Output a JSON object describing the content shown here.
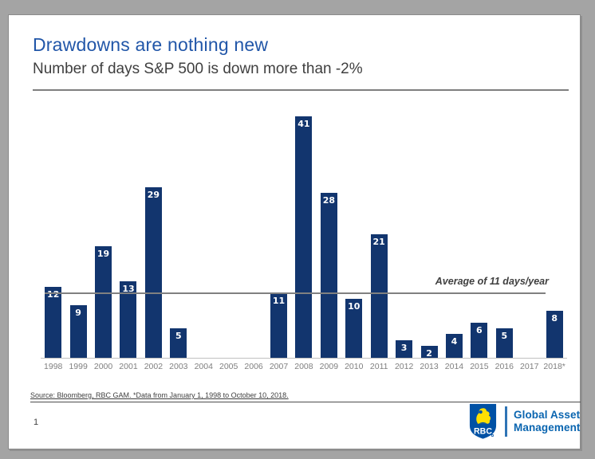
{
  "slide": {
    "title": "Drawdowns are nothing new",
    "subtitle": "Number of days S&P 500 is down more than -2%",
    "source_note": "Source: Bloomberg, RBC GAM. *Data from January 1, 1998 to October 10, 2018.",
    "page_number": "1"
  },
  "chart_data": {
    "type": "bar",
    "title": "Drawdowns are nothing new",
    "subtitle": "Number of days S&P 500 is down more than -2%",
    "categories": [
      "1998",
      "1999",
      "2000",
      "2001",
      "2002",
      "2003",
      "2004",
      "2005",
      "2006",
      "2007",
      "2008",
      "2009",
      "2010",
      "2011",
      "2012",
      "2013",
      "2014",
      "2015",
      "2016",
      "2017",
      "2018*"
    ],
    "values": [
      12,
      9,
      19,
      13,
      29,
      5,
      0,
      0,
      0,
      11,
      41,
      28,
      10,
      21,
      3,
      2,
      4,
      6,
      5,
      0,
      8
    ],
    "xlabel": "",
    "ylabel": "Number of days S&P 500 is down more than -2%",
    "ylim": [
      0,
      42
    ],
    "grid": false,
    "legend": "none",
    "bar_color": "#12356e",
    "bar_label_color": "#ffffff",
    "average_line": {
      "value": 11,
      "label": "Average of 11 days/year",
      "color": "#808080"
    }
  },
  "logo": {
    "brand": "RBC",
    "text_line1": "Global Asset",
    "text_line2": "Management",
    "shield_blue": "#0051a5",
    "lion_yellow": "#fedf01",
    "text_blue": "#0a65b0"
  },
  "colors": {
    "title_blue": "#2156a8",
    "subtitle_gray": "#3f3f3f",
    "axis_label_gray": "#7f7f7f",
    "background_gray": "#a4a4a4",
    "slide_white": "#ffffff"
  }
}
